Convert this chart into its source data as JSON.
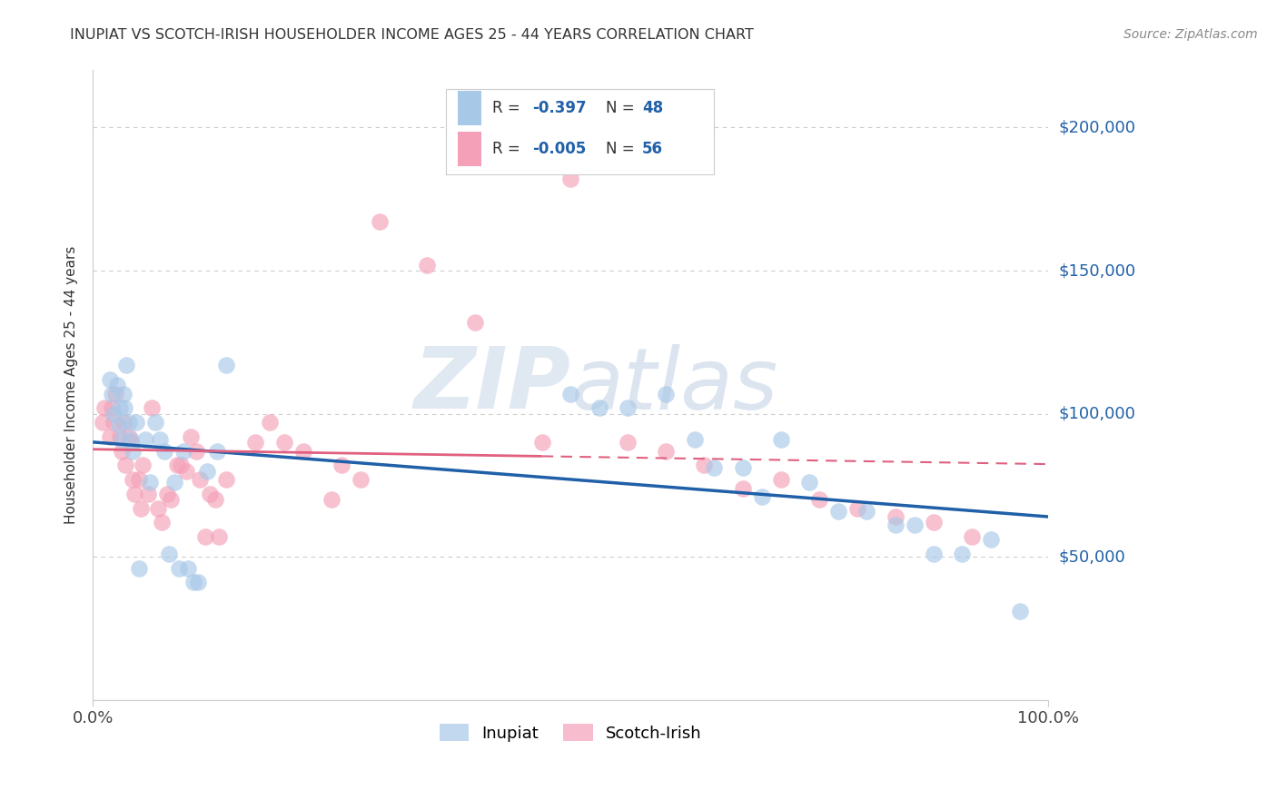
{
  "title": "INUPIAT VS SCOTCH-IRISH HOUSEHOLDER INCOME AGES 25 - 44 YEARS CORRELATION CHART",
  "source": "Source: ZipAtlas.com",
  "ylabel": "Householder Income Ages 25 - 44 years",
  "xlim": [
    0,
    1.0
  ],
  "ylim": [
    0,
    220000
  ],
  "yticks": [
    0,
    50000,
    100000,
    150000,
    200000
  ],
  "ytick_labels": [
    "",
    "$50,000",
    "$100,000",
    "$150,000",
    "$200,000"
  ],
  "inupiat_color": "#a8c8e8",
  "scotch_color": "#f4a0b8",
  "line_color_inupiat": "#2060a8",
  "line_color_scotch": "#e06080",
  "inupiat_x": [
    0.018,
    0.02,
    0.022,
    0.025,
    0.027,
    0.028,
    0.03,
    0.032,
    0.033,
    0.035,
    0.038,
    0.04,
    0.042,
    0.045,
    0.048,
    0.055,
    0.06,
    0.065,
    0.07,
    0.075,
    0.08,
    0.085,
    0.09,
    0.095,
    0.1,
    0.105,
    0.11,
    0.12,
    0.13,
    0.14,
    0.5,
    0.53,
    0.56,
    0.6,
    0.63,
    0.65,
    0.68,
    0.7,
    0.72,
    0.75,
    0.78,
    0.81,
    0.84,
    0.86,
    0.88,
    0.91,
    0.94,
    0.97
  ],
  "inupiat_y": [
    112000,
    107000,
    100000,
    110000,
    96000,
    102000,
    91000,
    107000,
    102000,
    117000,
    97000,
    91000,
    87000,
    97000,
    46000,
    91000,
    76000,
    97000,
    91000,
    87000,
    51000,
    76000,
    46000,
    87000,
    46000,
    41000,
    41000,
    80000,
    87000,
    117000,
    107000,
    102000,
    102000,
    107000,
    91000,
    81000,
    81000,
    71000,
    91000,
    76000,
    66000,
    66000,
    61000,
    61000,
    51000,
    51000,
    56000,
    31000
  ],
  "scotch_x": [
    0.01,
    0.012,
    0.018,
    0.02,
    0.022,
    0.024,
    0.028,
    0.03,
    0.032,
    0.034,
    0.038,
    0.04,
    0.042,
    0.044,
    0.048,
    0.05,
    0.052,
    0.058,
    0.062,
    0.068,
    0.072,
    0.078,
    0.082,
    0.088,
    0.092,
    0.098,
    0.102,
    0.108,
    0.112,
    0.118,
    0.122,
    0.128,
    0.132,
    0.14,
    0.17,
    0.185,
    0.2,
    0.22,
    0.25,
    0.26,
    0.28,
    0.3,
    0.35,
    0.4,
    0.47,
    0.5,
    0.56,
    0.6,
    0.64,
    0.68,
    0.72,
    0.76,
    0.8,
    0.84,
    0.88,
    0.92
  ],
  "scotch_y": [
    97000,
    102000,
    92000,
    102000,
    97000,
    107000,
    92000,
    87000,
    97000,
    82000,
    92000,
    90000,
    77000,
    72000,
    77000,
    67000,
    82000,
    72000,
    102000,
    67000,
    62000,
    72000,
    70000,
    82000,
    82000,
    80000,
    92000,
    87000,
    77000,
    57000,
    72000,
    70000,
    57000,
    77000,
    90000,
    97000,
    90000,
    87000,
    70000,
    82000,
    77000,
    167000,
    152000,
    132000,
    90000,
    182000,
    90000,
    87000,
    82000,
    74000,
    77000,
    70000,
    67000,
    64000,
    62000,
    57000
  ]
}
